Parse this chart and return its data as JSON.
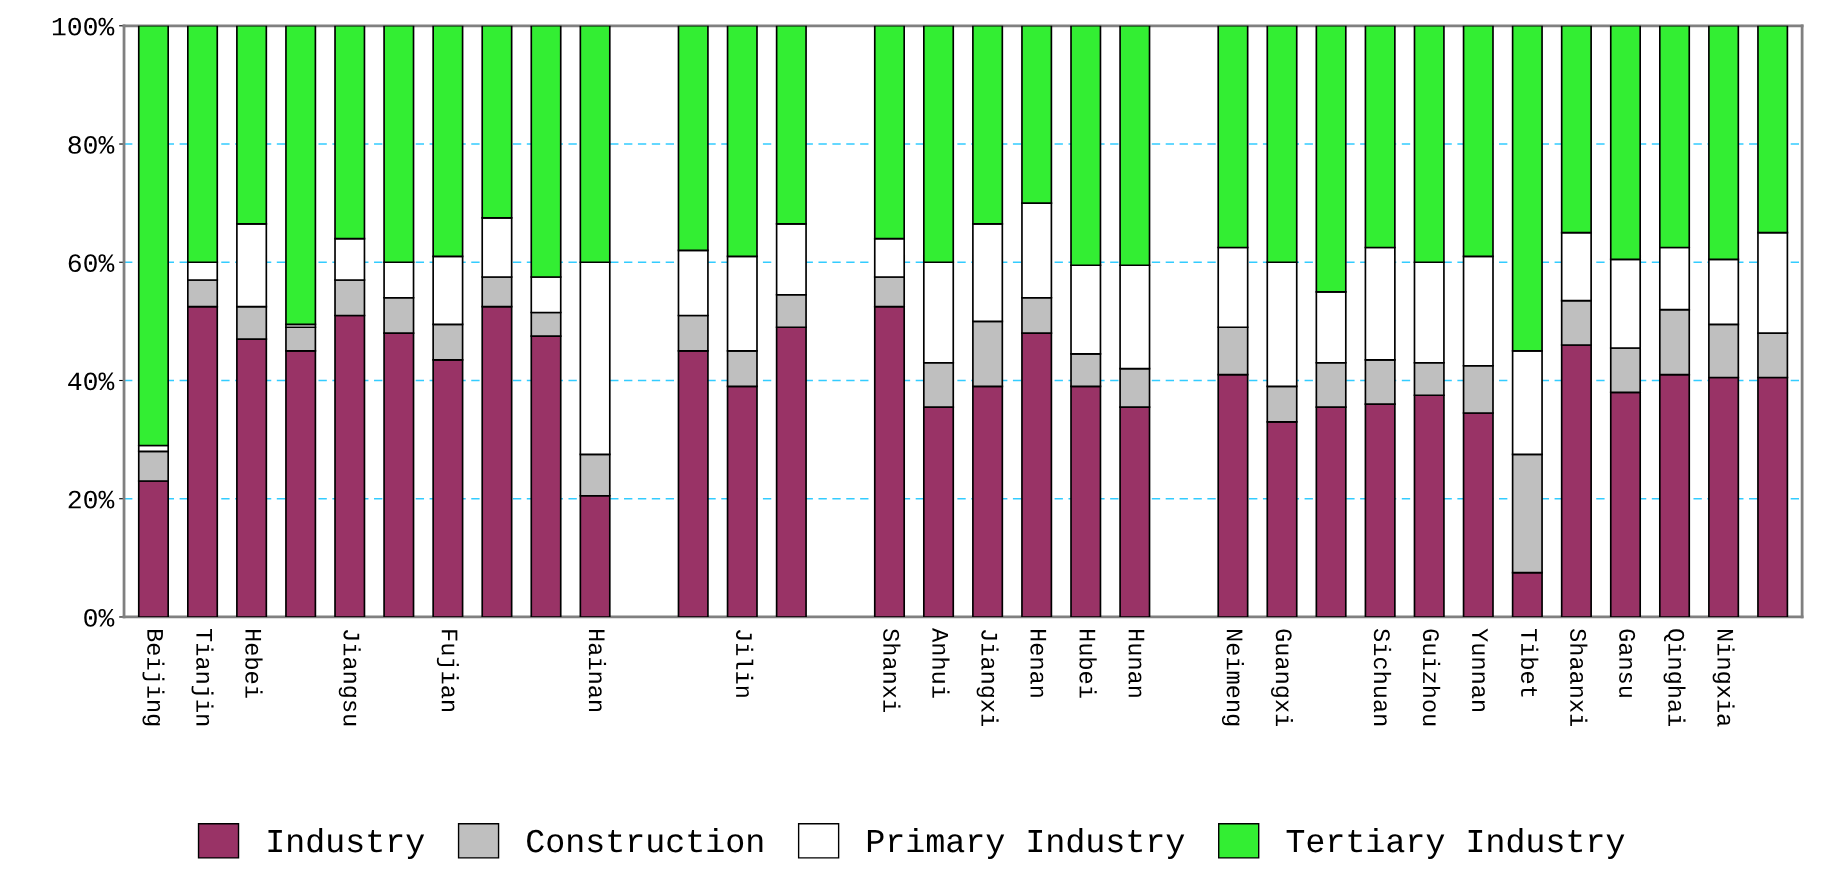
{
  "chart_data": {
    "type": "bar",
    "stacked": true,
    "categories": [
      "Beijing",
      "Tianjin",
      "Hebei",
      null,
      "Jiangsu",
      null,
      "Fujian",
      null,
      null,
      "Hainan",
      null,
      null,
      "Jilin",
      null,
      null,
      "Shanxi",
      "Anhui",
      "Jiangxi",
      "Henan",
      "Hubei",
      "Hunan",
      null,
      "Neimeng",
      "Guangxi",
      null,
      "Sichuan",
      "Guizhou",
      "Yunnan",
      "Tibet",
      "Shaanxi",
      "Gansu",
      "Qinghai",
      "Ningxia",
      null
    ],
    "series": [
      {
        "name": "Industry",
        "color": "#993366",
        "values": [
          23,
          52.5,
          47,
          45,
          51,
          48,
          43.5,
          52.5,
          47.5,
          20.5,
          null,
          45,
          39,
          49,
          null,
          52.5,
          35.5,
          39,
          48,
          39,
          35.5,
          null,
          41,
          33,
          35.5,
          36,
          37.5,
          34.5,
          7.5,
          46,
          38,
          41,
          40.5,
          40.5
        ]
      },
      {
        "name": "Construction",
        "color": "#bfbfbf",
        "values": [
          5,
          4.5,
          5.5,
          4,
          6,
          6,
          6,
          5,
          4,
          7,
          null,
          6,
          6,
          5.5,
          null,
          5,
          7.5,
          11,
          6,
          5.5,
          6.5,
          null,
          8,
          6,
          7.5,
          7.5,
          5.5,
          8,
          20,
          7.5,
          7.5,
          11,
          9,
          7.5
        ]
      },
      {
        "name": "Primary Industry",
        "color": "#ffffff",
        "values": [
          1,
          3,
          14,
          0.5,
          7,
          6,
          11.5,
          10,
          6,
          32.5,
          null,
          11,
          16,
          12,
          null,
          6.5,
          17,
          16.5,
          16,
          15,
          17.5,
          null,
          13.5,
          21,
          12,
          19,
          17,
          18.5,
          17.5,
          11.5,
          15,
          10.5,
          11,
          17
        ]
      },
      {
        "name": "Tertiary Industry",
        "color": "#33ee33",
        "values": [
          71,
          40,
          33.5,
          50.5,
          36,
          40,
          39,
          32.5,
          42.5,
          40,
          null,
          38,
          39,
          33.5,
          null,
          36,
          40,
          33.5,
          30,
          40.5,
          40.5,
          null,
          37.5,
          40,
          45,
          37.5,
          40,
          39,
          55,
          35,
          39.5,
          37.5,
          39.5,
          35
        ]
      }
    ],
    "ylim": [
      0,
      100
    ],
    "yticks": [
      {
        "value": 0,
        "label": "0%"
      },
      {
        "value": 20,
        "label": "20%"
      },
      {
        "value": 40,
        "label": "40%"
      },
      {
        "value": 60,
        "label": "60%"
      },
      {
        "value": 80,
        "label": "80%"
      },
      {
        "value": 100,
        "label": "100%"
      }
    ],
    "grid": "y",
    "legend": "bottom"
  }
}
